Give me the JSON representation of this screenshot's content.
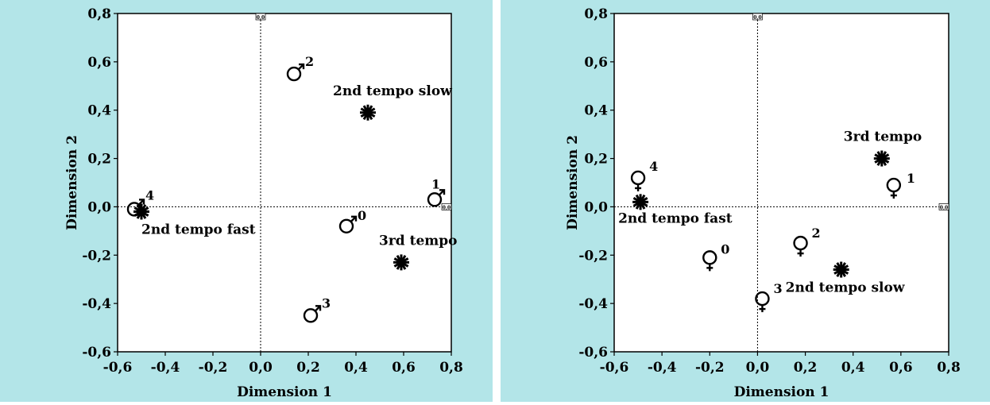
{
  "colors": {
    "background": "#b3e5e8",
    "plot": "#ffffff",
    "ink": "#000000"
  },
  "origin_label": "0,0",
  "chart_data": [
    {
      "type": "scatter",
      "xlabel": "Dimension 1",
      "ylabel": "Dimension 2",
      "xlim": [
        -0.6,
        0.8
      ],
      "ylim": [
        -0.6,
        0.8
      ],
      "xticks": [
        "-0,6",
        "-0,4",
        "-0,2",
        "0,0",
        "0,2",
        "0,4",
        "0,6",
        "0,8"
      ],
      "yticks": [
        "-0,6",
        "-0,4",
        "-0,2",
        "0,0",
        "0,2",
        "0,4",
        "0,6",
        "0,8"
      ],
      "series": [
        {
          "marker": "male-symbol",
          "points": [
            {
              "label": "0",
              "x": 0.36,
              "y": -0.08
            },
            {
              "label": "1",
              "x": 0.73,
              "y": 0.03
            },
            {
              "label": "2",
              "x": 0.14,
              "y": 0.55
            },
            {
              "label": "3",
              "x": 0.21,
              "y": -0.45
            },
            {
              "label": "4",
              "x": -0.53,
              "y": -0.01
            }
          ]
        },
        {
          "marker": "asterisk",
          "points": [
            {
              "label": "2nd tempo slow",
              "x": 0.45,
              "y": 0.39
            },
            {
              "label": "3rd tempo",
              "x": 0.59,
              "y": -0.23
            },
            {
              "label": "2nd tempo fast",
              "x": -0.5,
              "y": -0.02
            }
          ]
        }
      ]
    },
    {
      "type": "scatter",
      "xlabel": "Dimension 1",
      "ylabel": "Dimension 2",
      "xlim": [
        -0.6,
        0.8
      ],
      "ylim": [
        -0.6,
        0.8
      ],
      "xticks": [
        "-0,6",
        "-0,4",
        "-0,2",
        "0,0",
        "0,2",
        "0,4",
        "0,6",
        "0,8"
      ],
      "yticks": [
        "-0,6",
        "-0,4",
        "-0,2",
        "0,0",
        "0,2",
        "0,4",
        "0,6",
        "0,8"
      ],
      "series": [
        {
          "marker": "female-symbol",
          "points": [
            {
              "label": "0",
              "x": -0.2,
              "y": -0.22
            },
            {
              "label": "1",
              "x": 0.57,
              "y": 0.08
            },
            {
              "label": "2",
              "x": 0.18,
              "y": -0.16
            },
            {
              "label": "3",
              "x": 0.02,
              "y": -0.39
            },
            {
              "label": "4",
              "x": -0.5,
              "y": 0.11
            }
          ]
        },
        {
          "marker": "asterisk",
          "points": [
            {
              "label": "3rd tempo",
              "x": 0.52,
              "y": 0.2
            },
            {
              "label": "2nd tempo fast",
              "x": -0.49,
              "y": 0.02
            },
            {
              "label": "2nd tempo slow",
              "x": 0.35,
              "y": -0.26
            }
          ]
        }
      ]
    }
  ]
}
